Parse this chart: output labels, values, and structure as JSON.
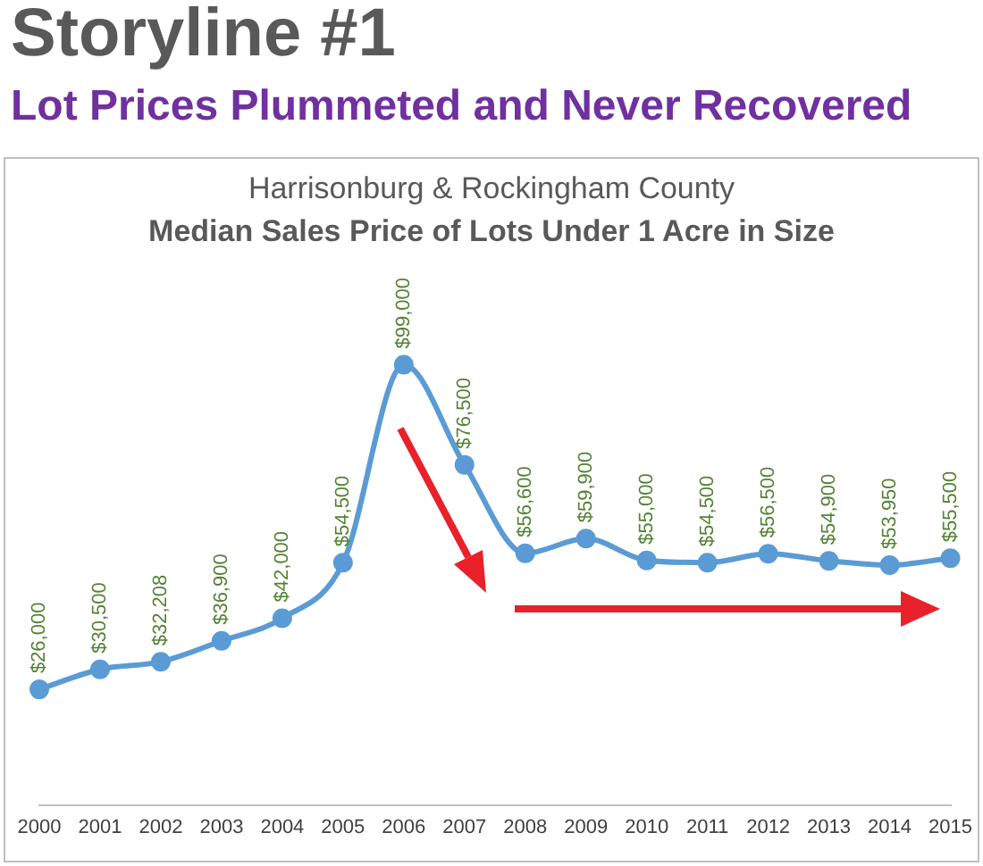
{
  "chart_data": {
    "type": "line",
    "title": "Storyline #1",
    "subtitle": "Lot Prices Plummeted and Never Recovered",
    "annotations": [
      "Harrisonburg & Rockingham County",
      "Median Sales Price of Lots Under 1 Acre in Size"
    ],
    "categories": [
      "2000",
      "2001",
      "2002",
      "2003",
      "2004",
      "2005",
      "2006",
      "2007",
      "2008",
      "2009",
      "2010",
      "2011",
      "2012",
      "2013",
      "2014",
      "2015"
    ],
    "series": [
      {
        "color": "#5b9bd5",
        "values": [
          26000,
          30500,
          32208,
          36900,
          42000,
          54500,
          99000,
          76500,
          56600,
          59900,
          55000,
          54500,
          56500,
          54900,
          53950,
          55500
        ],
        "value_labels": [
          "$26,000",
          "$30,500",
          "$32,208",
          "$36,900",
          "$42,000",
          "$54,500",
          "$99,000",
          "$76,500",
          "$56,600",
          "$59,900",
          "$55,000",
          "$54,500",
          "$56,500",
          "$54,900",
          "$53,950",
          "$55,500"
        ]
      }
    ],
    "tick_labels": "x",
    "marker": "circle",
    "line_style": "solid",
    "data_labels": true
  }
}
